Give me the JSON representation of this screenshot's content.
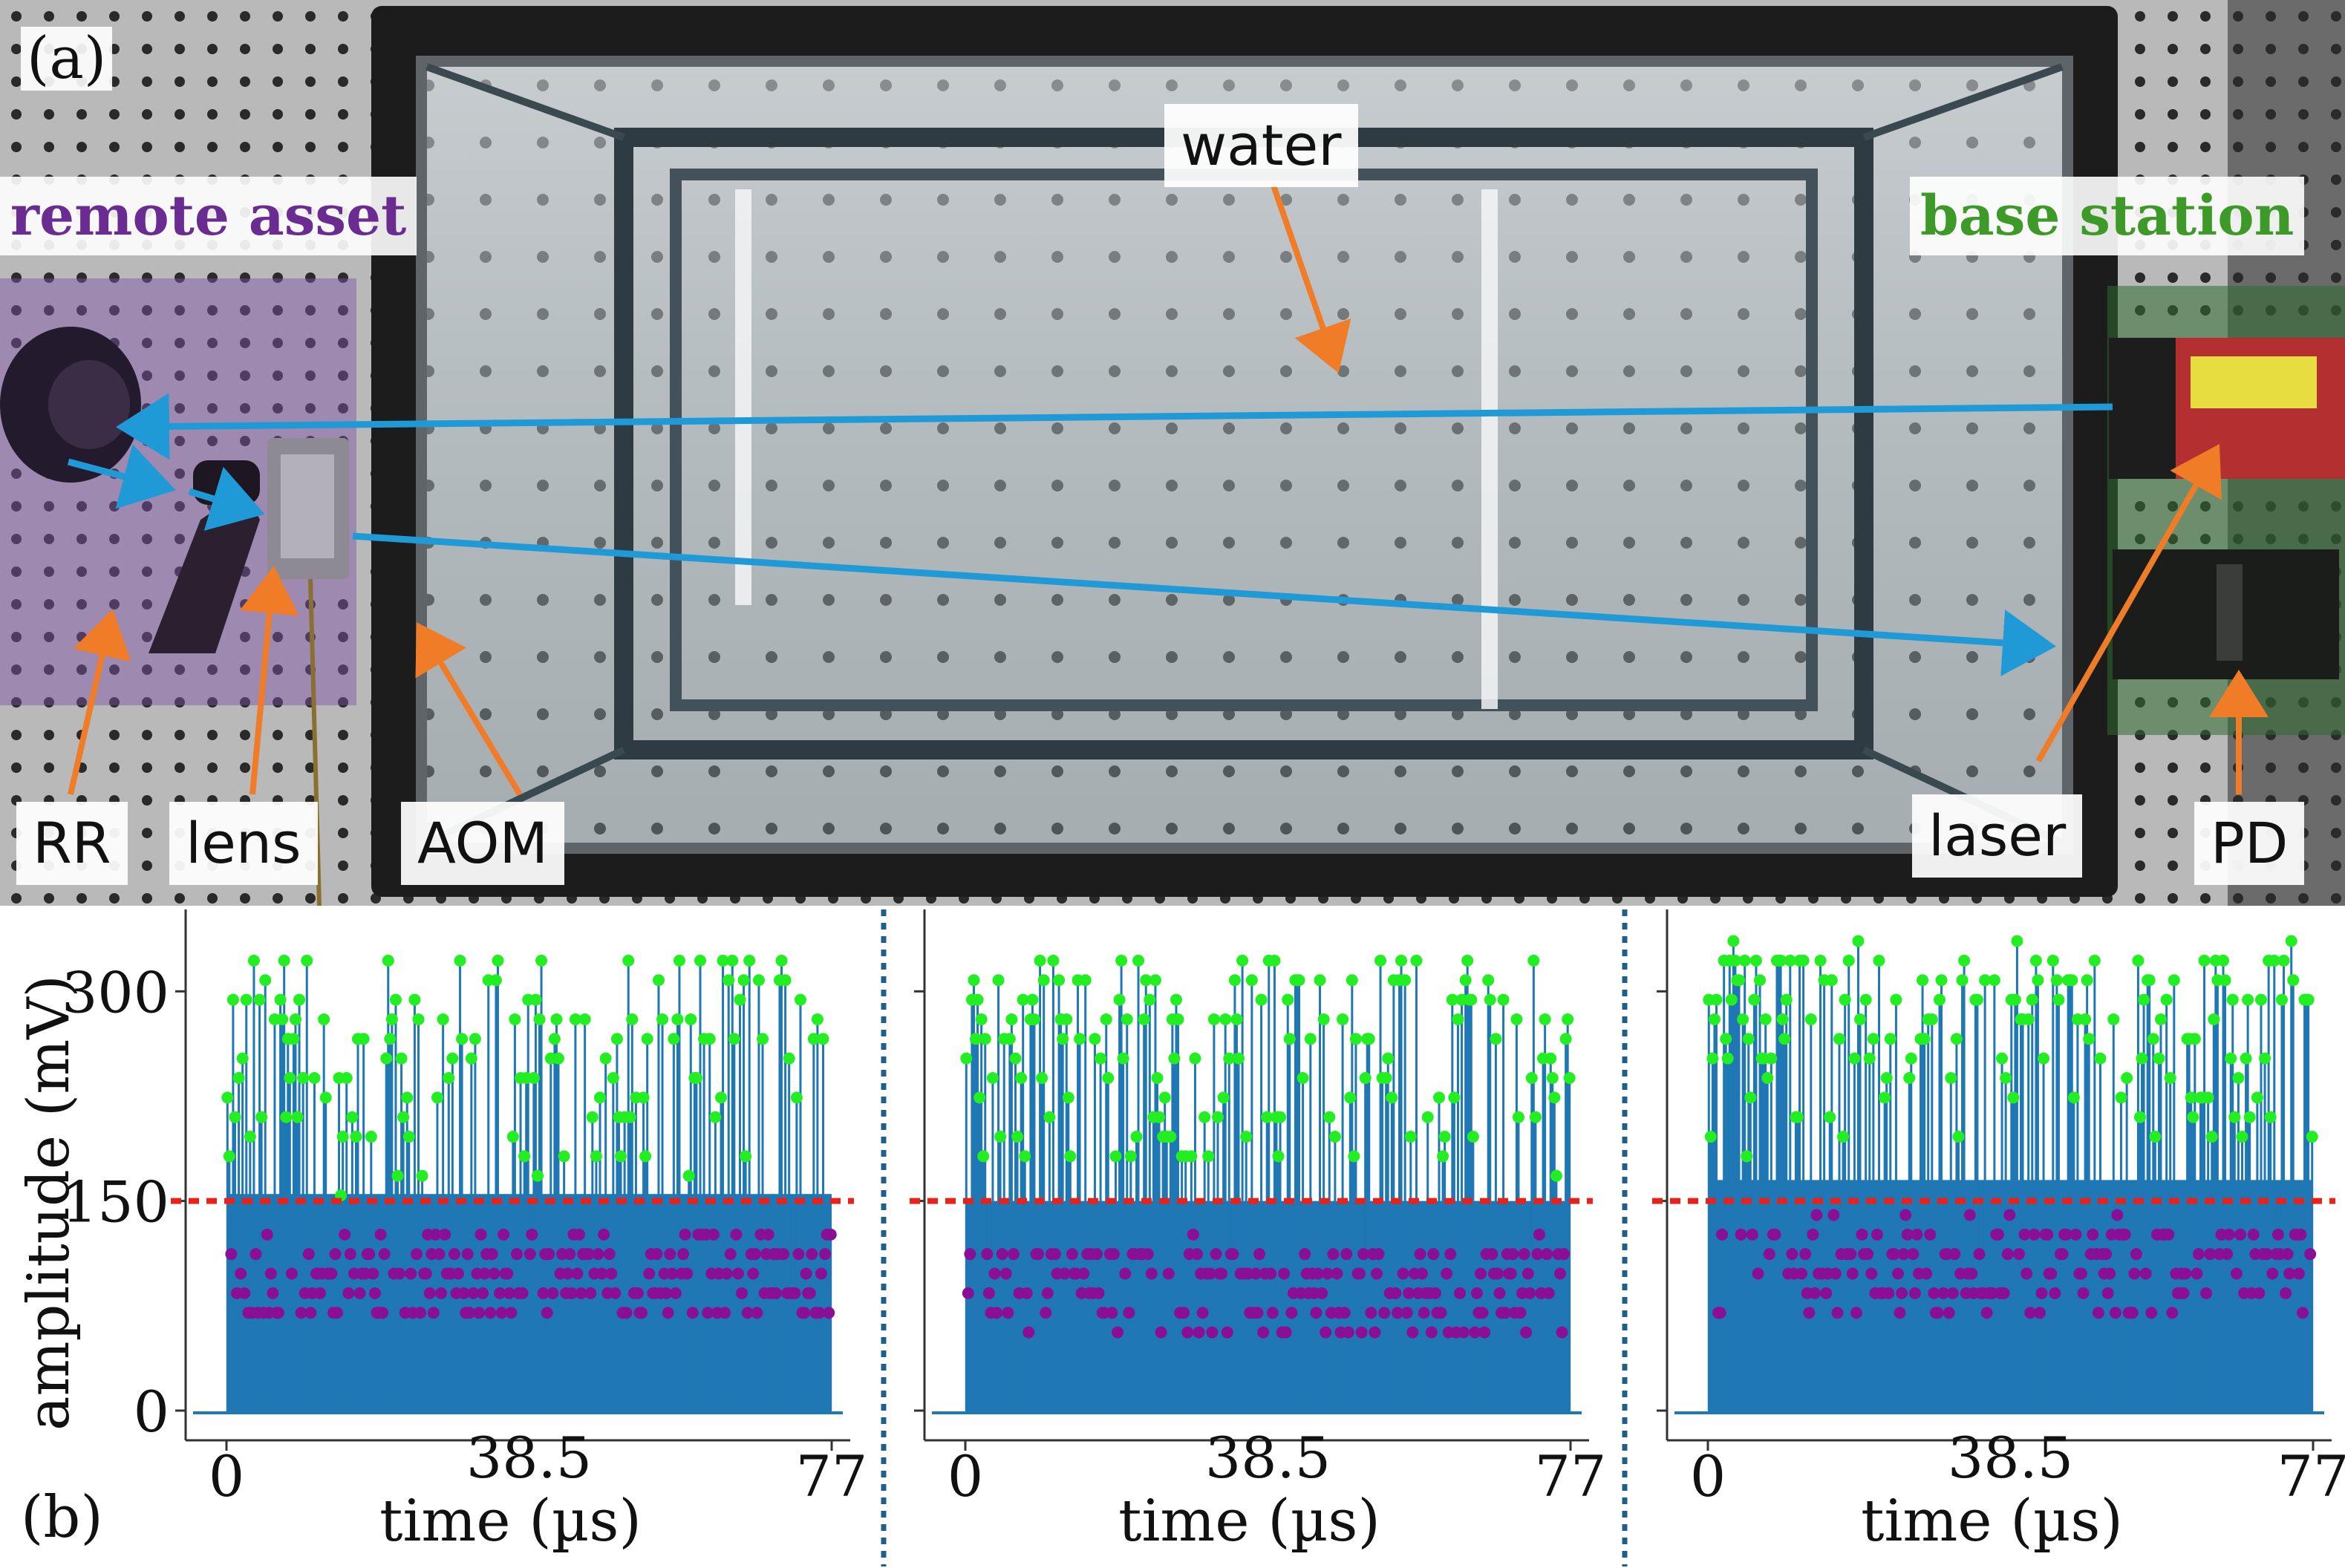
{
  "panel_a": {
    "letter": "(a)",
    "titles": {
      "remote": "remote asset",
      "base": "base station"
    },
    "labels": {
      "water": "water",
      "rr": "RR",
      "lens": "lens",
      "aom": "AOM",
      "laser": "laser",
      "pd": "PD"
    },
    "colors": {
      "remote_title": "#6b2c91",
      "base_title": "#3e9a28",
      "remote_tint": "#7e4fa8",
      "base_tint": "#2f6b2f",
      "beam": "#1f9ad6",
      "pointer": "#f07c28"
    }
  },
  "panel_b": {
    "letter": "(b)",
    "colors": {
      "stem": "#1f77b4",
      "high_marker": "#22ee22",
      "low_marker": "#8a0f96",
      "threshold": "#e8211a",
      "separator": "#1f5f8b"
    }
  },
  "chart_data": [
    {
      "type": "scatter",
      "ylabel": "amplitude (mV)",
      "xlabel": "time (µs)",
      "yticks": [
        "0",
        "150",
        "300"
      ],
      "xticks": [
        "0",
        "38.5",
        "77"
      ],
      "xlim": [
        0,
        77
      ],
      "ylim": [
        0,
        340
      ],
      "threshold": 150,
      "series": [
        {
          "marker": "green",
          "range": [
            160,
            325
          ],
          "values": []
        },
        {
          "marker": "purple",
          "range": [
            65,
            125
          ],
          "values": []
        }
      ],
      "seed": 11
    },
    {
      "type": "scatter",
      "ylabel": "",
      "xlabel": "time (µs)",
      "yticks": [],
      "xticks": [
        "0",
        "38.5",
        "77"
      ],
      "xlim": [
        0,
        77
      ],
      "ylim": [
        0,
        340
      ],
      "threshold": 150,
      "series": [
        {
          "marker": "green",
          "range": [
            170,
            325
          ],
          "values": []
        },
        {
          "marker": "purple",
          "range": [
            55,
            120
          ],
          "values": []
        }
      ],
      "seed": 23
    },
    {
      "type": "scatter",
      "ylabel": "",
      "xlabel": "time (µs)",
      "yticks": [],
      "xticks": [
        "0",
        "38.5",
        "77"
      ],
      "xlim": [
        0,
        77
      ],
      "ylim": [
        0,
        340
      ],
      "threshold": 150,
      "series": [
        {
          "marker": "green",
          "range": [
            185,
            330
          ],
          "values": []
        },
        {
          "marker": "purple",
          "range": [
            70,
            135
          ],
          "values": []
        }
      ],
      "seed": 37
    }
  ]
}
